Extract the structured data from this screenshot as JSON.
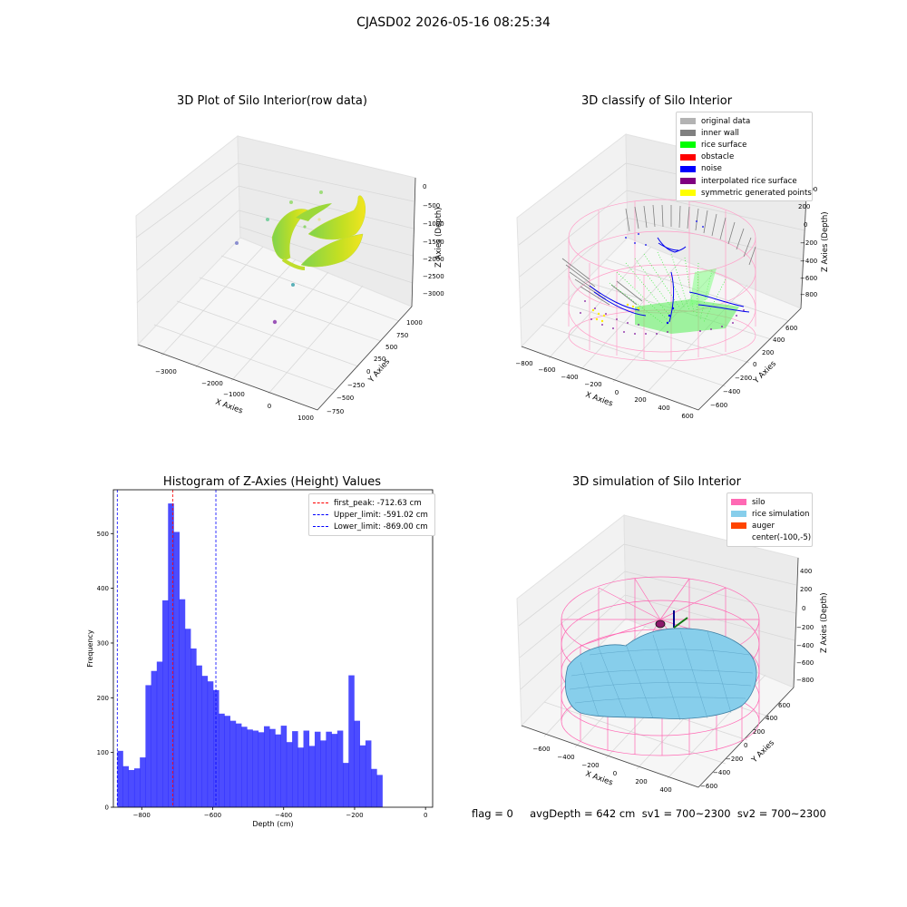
{
  "suptitle": "CJASD02 2026-05-16 08:25:34",
  "footer": "flag = 0     avgDepth = 642 cm  sv1 = 700~2300  sv2 = 700~2300",
  "panels": {
    "raw": {
      "title": "3D Plot of Silo Interior(row data)",
      "xlabel": "X Axies",
      "ylabel": "Y Axies",
      "zlabel": "Z Axies (Depth)",
      "xticks": [
        "−3000",
        "−2000",
        "−1000",
        "0",
        "1000"
      ],
      "yticks": [
        "−750",
        "−500",
        "−250",
        "0",
        "250",
        "500",
        "750",
        "1000"
      ],
      "zticks": [
        "0",
        "−500",
        "−1000",
        "−1500",
        "−2000",
        "−2500",
        "−3000"
      ]
    },
    "classify": {
      "title": "3D classify of Silo Interior",
      "xlabel": "X Axies",
      "ylabel": "Y Axies",
      "zlabel": "Z Axies (Depth)",
      "xticks": [
        "−800",
        "−600",
        "−400",
        "−200",
        "0",
        "200",
        "400",
        "600"
      ],
      "yticks": [
        "−600",
        "−400",
        "−200",
        "0",
        "200",
        "400",
        "600"
      ],
      "zticks": [
        "400",
        "200",
        "0",
        "−200",
        "−400",
        "−600",
        "−800"
      ],
      "legend": [
        {
          "label": "original data",
          "color": "#b3b3b3"
        },
        {
          "label": "inner wall",
          "color": "#808080"
        },
        {
          "label": "rice surface",
          "color": "#00ff00"
        },
        {
          "label": "obstacle",
          "color": "#ff0000"
        },
        {
          "label": "noise",
          "color": "#0000ff"
        },
        {
          "label": "interpolated rice surface",
          "color": "#800080"
        },
        {
          "label": "symmetric generated points",
          "color": "#ffff00"
        }
      ]
    },
    "simulation": {
      "title": "3D simulation of Silo Interior",
      "xlabel": "X Axies",
      "ylabel": "Y Axies",
      "zlabel": "Z Axies (Depth)",
      "xticks": [
        "−600",
        "−400",
        "−200",
        "0",
        "200",
        "400"
      ],
      "yticks": [
        "−600",
        "−400",
        "−200",
        "0",
        "200",
        "400",
        "600"
      ],
      "zticks": [
        "400",
        "200",
        "0",
        "−200",
        "−400",
        "−600",
        "−800"
      ],
      "legend": [
        {
          "label": "silo",
          "color": "#ff69b4"
        },
        {
          "label": "rice simulation",
          "color": "#87ceeb"
        },
        {
          "label": "auger",
          "color": "#ff4500"
        },
        {
          "label": "center(-100,-5)",
          "color": "#ffffff"
        }
      ]
    }
  },
  "chart_data": {
    "type": "bar",
    "title": "Histogram of Z-Axies (Height) Values",
    "xlabel": "Depth (cm)",
    "ylabel": "Frequency",
    "xlim": [
      -880,
      20
    ],
    "ylim": [
      0,
      580
    ],
    "xticks": [
      -800,
      -600,
      -400,
      -200,
      0
    ],
    "xtick_labels": [
      "−800",
      "−600",
      "−400",
      "−200",
      "0"
    ],
    "yticks": [
      0,
      100,
      200,
      300,
      400,
      500
    ],
    "bar_color": "#0000ff",
    "bin_start": -869,
    "bin_width": 15.9,
    "values": [
      103,
      75,
      68,
      71,
      91,
      223,
      249,
      266,
      378,
      555,
      503,
      380,
      326,
      290,
      259,
      240,
      230,
      214,
      171,
      167,
      158,
      153,
      147,
      142,
      140,
      137,
      148,
      143,
      133,
      149,
      119,
      139,
      109,
      140,
      112,
      138,
      122,
      138,
      134,
      140,
      81,
      241,
      158,
      113,
      122,
      70,
      59
    ],
    "vlines": [
      {
        "x": -712.63,
        "color": "#ff0000",
        "label": "first_peak: -712.63 cm"
      },
      {
        "x": -591.02,
        "color": "#0000ff",
        "label": "Upper_limit: -591.02 cm"
      },
      {
        "x": -869.0,
        "color": "#0000ff",
        "label": "Lower_limit: -869.00 cm"
      }
    ],
    "legend_position": "upper right"
  }
}
